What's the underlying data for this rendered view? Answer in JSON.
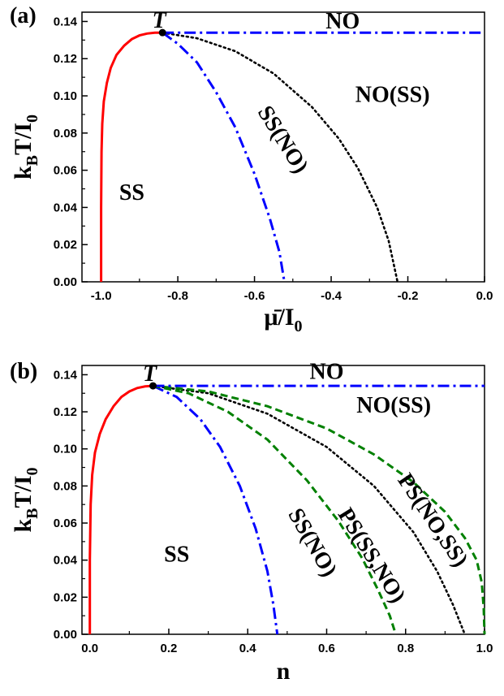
{
  "chart_data": [
    {
      "panel_label": "(a)",
      "type": "line",
      "xlabel_main": "μ̄/I",
      "xlabel_sub": "0",
      "ylabel_parts": [
        "k",
        "B",
        "T/I",
        "0"
      ],
      "xlim": [
        -1.05,
        0.0
      ],
      "ylim": [
        0.0,
        0.145
      ],
      "xticks": [
        -1.0,
        -0.8,
        -0.6,
        -0.4,
        -0.2,
        0.0
      ],
      "xtick_labels": [
        "-1.0",
        "-0.8",
        "-0.6",
        "-0.4",
        "-0.2",
        "0.0"
      ],
      "yticks": [
        0.0,
        0.02,
        0.04,
        0.06,
        0.08,
        0.1,
        0.12,
        0.14
      ],
      "ytick_labels": [
        "0.00",
        "0.02",
        "0.04",
        "0.06",
        "0.08",
        "0.10",
        "0.12",
        "0.14"
      ],
      "point": {
        "label": "T",
        "x": -0.84,
        "y": 0.134
      },
      "series": [
        {
          "style": "solid",
          "color": "#ff0000",
          "x": [
            -1.0,
            -1.0,
            -0.999,
            -0.997,
            -0.993,
            -0.985,
            -0.975,
            -0.96,
            -0.94,
            -0.92,
            -0.9,
            -0.88,
            -0.86,
            -0.84
          ],
          "y": [
            0.0,
            0.04,
            0.07,
            0.085,
            0.097,
            0.107,
            0.115,
            0.122,
            0.127,
            0.1305,
            0.1325,
            0.1335,
            0.134,
            0.134
          ]
        },
        {
          "style": "dashdot",
          "color": "#0000ff",
          "x": [
            -0.84,
            -0.8,
            -0.75,
            -0.7,
            -0.65,
            -0.6,
            -0.56,
            -0.535,
            -0.522
          ],
          "y": [
            0.134,
            0.128,
            0.118,
            0.102,
            0.083,
            0.058,
            0.034,
            0.016,
            0.0
          ]
        },
        {
          "style": "dotted",
          "color": "#000000",
          "x": [
            -0.84,
            -0.75,
            -0.65,
            -0.55,
            -0.45,
            -0.38,
            -0.33,
            -0.28,
            -0.25,
            -0.227
          ],
          "y": [
            0.134,
            0.131,
            0.124,
            0.112,
            0.094,
            0.077,
            0.061,
            0.04,
            0.022,
            0.0
          ]
        },
        {
          "style": "dashdot",
          "color": "#0000ff",
          "x": [
            -0.84,
            0.0
          ],
          "y": [
            0.134,
            0.134
          ]
        }
      ],
      "regions": [
        {
          "text": "NO",
          "x": -0.37,
          "y": 0.139,
          "rotate": 0
        },
        {
          "text": "NO(SS)",
          "x": -0.24,
          "y": 0.0995,
          "rotate": 0
        },
        {
          "text": "SS(NO)",
          "x": -0.53,
          "y": 0.076,
          "rotate": 58
        },
        {
          "text": "SS",
          "x": -0.92,
          "y": 0.047,
          "rotate": 0
        }
      ]
    },
    {
      "panel_label": "(b)",
      "type": "line",
      "xlabel_main": "n",
      "xlabel_sub": "",
      "ylabel_parts": [
        "k",
        "B",
        "T/I",
        "0"
      ],
      "xlim": [
        -0.02,
        1.0
      ],
      "ylim": [
        0.0,
        0.145
      ],
      "xticks": [
        0.0,
        0.2,
        0.4,
        0.6,
        0.8,
        1.0
      ],
      "xtick_labels": [
        "0.0",
        "0.2",
        "0.4",
        "0.6",
        "0.8",
        "1.0"
      ],
      "yticks": [
        0.0,
        0.02,
        0.04,
        0.06,
        0.08,
        0.1,
        0.12,
        0.14
      ],
      "ytick_labels": [
        "0.00",
        "0.02",
        "0.04",
        "0.06",
        "0.08",
        "0.10",
        "0.12",
        "0.14"
      ],
      "point": {
        "label": "T",
        "x": 0.16,
        "y": 0.134
      },
      "series": [
        {
          "style": "solid",
          "color": "#ff0000",
          "x": [
            0.0,
            0.0,
            0.002,
            0.006,
            0.013,
            0.025,
            0.04,
            0.06,
            0.08,
            0.1,
            0.12,
            0.14,
            0.16
          ],
          "y": [
            0.0,
            0.04,
            0.07,
            0.086,
            0.098,
            0.108,
            0.116,
            0.123,
            0.128,
            0.131,
            0.1328,
            0.1337,
            0.134
          ]
        },
        {
          "style": "dashdot",
          "color": "#0000ff",
          "x": [
            0.16,
            0.22,
            0.28,
            0.33,
            0.38,
            0.42,
            0.45,
            0.465,
            0.475
          ],
          "y": [
            0.134,
            0.128,
            0.116,
            0.101,
            0.08,
            0.057,
            0.034,
            0.016,
            0.0
          ]
        },
        {
          "style": "dotted",
          "color": "#000000",
          "x": [
            0.16,
            0.3,
            0.45,
            0.6,
            0.72,
            0.82,
            0.88,
            0.92,
            0.95
          ],
          "y": [
            0.134,
            0.13,
            0.119,
            0.101,
            0.08,
            0.055,
            0.034,
            0.016,
            0.0
          ]
        },
        {
          "style": "dashed",
          "color": "#008000",
          "x": [
            0.16,
            0.25,
            0.35,
            0.45,
            0.55,
            0.63,
            0.69,
            0.73,
            0.76,
            0.775
          ],
          "y": [
            0.134,
            0.13,
            0.12,
            0.105,
            0.083,
            0.061,
            0.041,
            0.024,
            0.01,
            0.0
          ]
        },
        {
          "style": "dashed",
          "color": "#008000",
          "x": [
            0.16,
            0.3,
            0.45,
            0.6,
            0.72,
            0.82,
            0.9,
            0.95,
            0.98,
            0.993,
            0.998,
            1.0
          ],
          "y": [
            0.134,
            0.131,
            0.123,
            0.111,
            0.097,
            0.082,
            0.066,
            0.052,
            0.04,
            0.028,
            0.014,
            0.0
          ]
        },
        {
          "style": "dashdot",
          "color": "#0000ff",
          "x": [
            0.16,
            1.0
          ],
          "y": [
            0.134,
            0.134
          ]
        }
      ],
      "regions": [
        {
          "text": "NO",
          "x": 0.6,
          "y": 0.1405,
          "rotate": 0
        },
        {
          "text": "NO(SS)",
          "x": 0.77,
          "y": 0.1225,
          "rotate": 0
        },
        {
          "text": "SS(NO)",
          "x": 0.56,
          "y": 0.049,
          "rotate": 60
        },
        {
          "text": "PS(SS,NO)",
          "x": 0.71,
          "y": 0.042,
          "rotate": 58
        },
        {
          "text": "PS(NO,SS)",
          "x": 0.865,
          "y": 0.061,
          "rotate": 56
        },
        {
          "text": "SS",
          "x": 0.22,
          "y": 0.042,
          "rotate": 0
        }
      ]
    }
  ]
}
